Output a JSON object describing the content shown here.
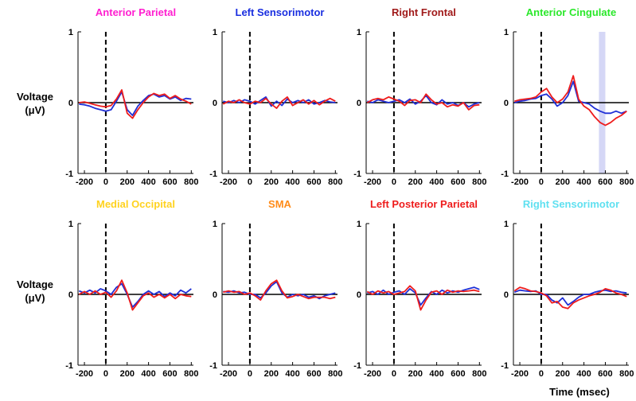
{
  "figure": {
    "ylabel_line1": "Voltage",
    "ylabel_line2": "(μV)",
    "xlabel": "Time (msec)"
  },
  "chart_data": {
    "type": "line",
    "xlim": [
      -260,
      820
    ],
    "ylim": [
      -1,
      1
    ],
    "x_ticks": [
      -200,
      0,
      200,
      400,
      600,
      800
    ],
    "x_tick_labels": [
      "-200",
      "0",
      "200",
      "400",
      "600",
      "800"
    ],
    "y_tick_labels": [
      "1",
      "0",
      "-1"
    ],
    "series_colors": [
      "#1f2fd6",
      "#ee1c1c"
    ],
    "x": [
      -250,
      -200,
      -150,
      -100,
      -50,
      0,
      50,
      100,
      150,
      200,
      250,
      300,
      350,
      400,
      450,
      500,
      550,
      600,
      650,
      700,
      750,
      800
    ],
    "panels": [
      {
        "title": "Anterior Parietal",
        "title_color": "#ff1fd0",
        "series": [
          {
            "values": [
              -0.02,
              -0.03,
              -0.05,
              -0.08,
              -0.1,
              -0.12,
              -0.1,
              0.02,
              0.15,
              -0.1,
              -0.18,
              -0.05,
              0.03,
              0.1,
              0.12,
              0.08,
              0.1,
              0.05,
              0.08,
              0.03,
              0.06,
              0.05
            ]
          },
          {
            "values": [
              0.0,
              0.01,
              -0.01,
              -0.03,
              -0.05,
              -0.06,
              -0.04,
              0.05,
              0.18,
              -0.15,
              -0.22,
              -0.1,
              0.0,
              0.08,
              0.13,
              0.1,
              0.12,
              0.06,
              0.1,
              0.05,
              0.02,
              -0.02
            ]
          }
        ]
      },
      {
        "title": "Left Sensorimotor",
        "title_color": "#1a2fe0",
        "series": [
          {
            "values": [
              0.02,
              0.0,
              0.03,
              0.0,
              0.04,
              0.02,
              -0.02,
              0.03,
              0.08,
              -0.05,
              0.02,
              -0.04,
              0.05,
              0.0,
              0.03,
              0.0,
              0.04,
              -0.02,
              0.0,
              0.03,
              0.01,
              0.0
            ]
          },
          {
            "values": [
              -0.02,
              0.02,
              0.0,
              0.04,
              0.0,
              -0.02,
              0.02,
              0.0,
              0.06,
              -0.02,
              -0.08,
              0.02,
              0.08,
              -0.04,
              0.0,
              0.04,
              -0.02,
              0.03,
              -0.03,
              0.02,
              0.06,
              0.02
            ]
          }
        ]
      },
      {
        "title": "Right Frontal",
        "title_color": "#a01a1a",
        "series": [
          {
            "values": [
              0.02,
              0.0,
              0.04,
              0.02,
              0.0,
              0.02,
              0.04,
              0.0,
              0.05,
              -0.02,
              0.02,
              0.1,
              0.0,
              -0.03,
              0.04,
              -0.02,
              0.0,
              -0.04,
              0.0,
              -0.06,
              -0.02,
              0.0
            ]
          },
          {
            "values": [
              0.0,
              0.04,
              0.06,
              0.04,
              0.08,
              0.05,
              0.02,
              -0.04,
              0.03,
              0.04,
              0.0,
              0.12,
              0.04,
              -0.02,
              0.0,
              -0.06,
              -0.03,
              -0.05,
              0.0,
              -0.1,
              -0.04,
              -0.03
            ]
          }
        ]
      },
      {
        "title": "Anterior Cingulate",
        "title_color": "#2be82b",
        "shade_x": [
          540,
          600
        ],
        "series": [
          {
            "values": [
              0.0,
              0.02,
              0.03,
              0.05,
              0.06,
              0.1,
              0.12,
              0.05,
              -0.05,
              0.0,
              0.1,
              0.3,
              0.02,
              0.0,
              -0.02,
              -0.08,
              -0.12,
              -0.15,
              -0.15,
              -0.12,
              -0.15,
              -0.12
            ]
          },
          {
            "values": [
              0.02,
              0.04,
              0.05,
              0.06,
              0.08,
              0.15,
              0.2,
              0.08,
              0.0,
              0.05,
              0.15,
              0.38,
              0.05,
              -0.05,
              -0.1,
              -0.2,
              -0.28,
              -0.32,
              -0.28,
              -0.22,
              -0.18,
              -0.12
            ]
          }
        ]
      },
      {
        "title": "Medial Occipital",
        "title_color": "#ffd21f",
        "series": [
          {
            "values": [
              0.05,
              0.02,
              0.06,
              0.02,
              0.08,
              0.05,
              0.0,
              0.1,
              0.15,
              0.0,
              -0.18,
              -0.1,
              0.0,
              0.05,
              0.0,
              0.04,
              -0.03,
              0.02,
              -0.02,
              0.06,
              0.02,
              0.08
            ]
          },
          {
            "values": [
              0.0,
              0.04,
              0.0,
              0.05,
              0.0,
              0.03,
              -0.04,
              0.05,
              0.2,
              0.02,
              -0.22,
              -0.12,
              -0.02,
              0.02,
              -0.04,
              0.0,
              -0.05,
              0.0,
              -0.06,
              0.0,
              -0.02,
              -0.03
            ]
          }
        ]
      },
      {
        "title": "SMA",
        "title_color": "#ff8c1a",
        "series": [
          {
            "values": [
              0.04,
              0.03,
              0.05,
              0.02,
              0.03,
              0.0,
              0.0,
              -0.05,
              0.02,
              0.12,
              0.18,
              0.02,
              -0.04,
              0.0,
              -0.02,
              0.0,
              -0.04,
              -0.02,
              -0.06,
              -0.02,
              0.0,
              0.02
            ]
          },
          {
            "values": [
              0.03,
              0.05,
              0.03,
              0.04,
              0.0,
              0.02,
              -0.02,
              -0.08,
              0.05,
              0.15,
              0.2,
              0.05,
              -0.05,
              -0.03,
              0.0,
              -0.03,
              -0.06,
              -0.04,
              -0.04,
              -0.04,
              -0.06,
              -0.04
            ]
          }
        ]
      },
      {
        "title": "Left Posterior Parietal",
        "title_color": "#ee1c1c",
        "series": [
          {
            "values": [
              0.02,
              0.04,
              0.0,
              0.06,
              0.0,
              0.03,
              0.05,
              0.0,
              0.08,
              0.02,
              -0.15,
              -0.05,
              0.04,
              0.0,
              0.06,
              0.02,
              0.05,
              0.03,
              0.06,
              0.08,
              0.1,
              0.07
            ]
          },
          {
            "values": [
              0.04,
              0.0,
              0.05,
              0.02,
              0.04,
              0.0,
              0.02,
              0.04,
              0.12,
              0.05,
              -0.22,
              -0.08,
              0.03,
              0.05,
              0.0,
              0.06,
              0.03,
              0.05,
              0.04,
              0.05,
              0.06,
              0.04
            ]
          }
        ]
      },
      {
        "title": "Right Sensorimotor",
        "title_color": "#5fe0f0",
        "series": [
          {
            "values": [
              0.03,
              0.06,
              0.05,
              0.04,
              0.05,
              0.0,
              0.0,
              -0.08,
              -0.12,
              -0.05,
              -0.15,
              -0.1,
              -0.04,
              0.0,
              0.0,
              0.03,
              0.05,
              0.06,
              0.04,
              0.05,
              0.03,
              0.02
            ]
          },
          {
            "values": [
              0.05,
              0.1,
              0.08,
              0.05,
              0.04,
              0.02,
              -0.02,
              -0.12,
              -0.1,
              -0.18,
              -0.2,
              -0.12,
              -0.08,
              -0.05,
              -0.02,
              0.0,
              0.03,
              0.08,
              0.06,
              0.02,
              0.0,
              -0.03
            ]
          }
        ]
      }
    ]
  }
}
